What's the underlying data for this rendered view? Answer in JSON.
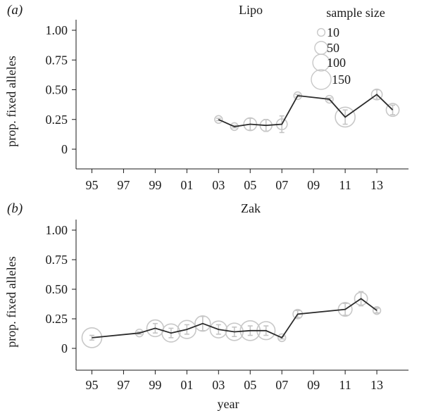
{
  "chart_data": [
    {
      "type": "scatter",
      "panel_label": "(a)",
      "title": "Lipo",
      "ylabel": "prop. fixed alleles",
      "xlabel": "",
      "xlim": [
        1994,
        2015
      ],
      "ylim": [
        -0.12,
        1.05
      ],
      "yticks": [
        1.0,
        0.75,
        0.5,
        0.25,
        0
      ],
      "ytick_labels": [
        "1.00",
        "0.75",
        "0.50",
        "0.25",
        "0"
      ],
      "xticks": [
        1995,
        1997,
        1999,
        2001,
        2003,
        2005,
        2007,
        2009,
        2011,
        2013
      ],
      "xtick_labels": [
        "95",
        "97",
        "99",
        "01",
        "03",
        "05",
        "07",
        "09",
        "11",
        "13"
      ],
      "grid": false,
      "legend": {
        "title": "sample size",
        "position": "top-right",
        "entries": [
          {
            "label": "10",
            "size": 10
          },
          {
            "label": "50",
            "size": 50
          },
          {
            "label": "100",
            "size": 100
          },
          {
            "label": "150",
            "size": 150
          }
        ]
      },
      "points": [
        {
          "x": 2003,
          "y": 0.25,
          "err": 0.01,
          "n": 10
        },
        {
          "x": 2004,
          "y": 0.19,
          "err": 0.01,
          "n": 10
        },
        {
          "x": 2005,
          "y": 0.21,
          "err": 0.05,
          "n": 50
        },
        {
          "x": 2006,
          "y": 0.2,
          "err": 0.05,
          "n": 40
        },
        {
          "x": 2007,
          "y": 0.21,
          "err": 0.07,
          "n": 30
        },
        {
          "x": 2008,
          "y": 0.45,
          "err": 0.01,
          "n": 10
        },
        {
          "x": 2010,
          "y": 0.42,
          "err": 0.01,
          "n": 10
        },
        {
          "x": 2011,
          "y": 0.27,
          "err": 0.06,
          "n": 150
        },
        {
          "x": 2013,
          "y": 0.46,
          "err": 0.04,
          "n": 30
        },
        {
          "x": 2014,
          "y": 0.33,
          "err": 0.04,
          "n": 50
        }
      ]
    },
    {
      "type": "scatter",
      "panel_label": "(b)",
      "title": "Zak",
      "ylabel": "prop. fixed alleles",
      "xlabel": "year",
      "xlim": [
        1994,
        2015
      ],
      "ylim": [
        -0.12,
        1.05
      ],
      "yticks": [
        1.0,
        0.75,
        0.5,
        0.25,
        0
      ],
      "ytick_labels": [
        "1.00",
        "0.75",
        "0.50",
        "0.25",
        "0"
      ],
      "xticks": [
        1995,
        1997,
        1999,
        2001,
        2003,
        2005,
        2007,
        2009,
        2011,
        2013
      ],
      "xtick_labels": [
        "95",
        "97",
        "99",
        "01",
        "03",
        "05",
        "07",
        "09",
        "11",
        "13"
      ],
      "grid": false,
      "points": [
        {
          "x": 1995,
          "y": 0.09,
          "err": 0.02,
          "n": 150
        },
        {
          "x": 1998,
          "y": 0.13,
          "err": 0.01,
          "n": 10
        },
        {
          "x": 1999,
          "y": 0.17,
          "err": 0.04,
          "n": 100
        },
        {
          "x": 2000,
          "y": 0.13,
          "err": 0.04,
          "n": 120
        },
        {
          "x": 2001,
          "y": 0.16,
          "err": 0.04,
          "n": 120
        },
        {
          "x": 2002,
          "y": 0.21,
          "err": 0.06,
          "n": 80
        },
        {
          "x": 2003,
          "y": 0.16,
          "err": 0.04,
          "n": 100
        },
        {
          "x": 2004,
          "y": 0.14,
          "err": 0.04,
          "n": 110
        },
        {
          "x": 2005,
          "y": 0.15,
          "err": 0.04,
          "n": 150
        },
        {
          "x": 2006,
          "y": 0.15,
          "err": 0.04,
          "n": 120
        },
        {
          "x": 2007,
          "y": 0.09,
          "err": 0.01,
          "n": 10
        },
        {
          "x": 2008,
          "y": 0.29,
          "err": 0.03,
          "n": 20
        },
        {
          "x": 2011,
          "y": 0.33,
          "err": 0.05,
          "n": 60
        },
        {
          "x": 2012,
          "y": 0.42,
          "err": 0.06,
          "n": 50
        },
        {
          "x": 2013,
          "y": 0.32,
          "err": 0.02,
          "n": 10
        }
      ]
    }
  ],
  "colors": {
    "line": "#2b2b2b",
    "points": "#c8c8c8",
    "errorbars": "#c4c4c4",
    "axes": "#1a1a1a"
  }
}
